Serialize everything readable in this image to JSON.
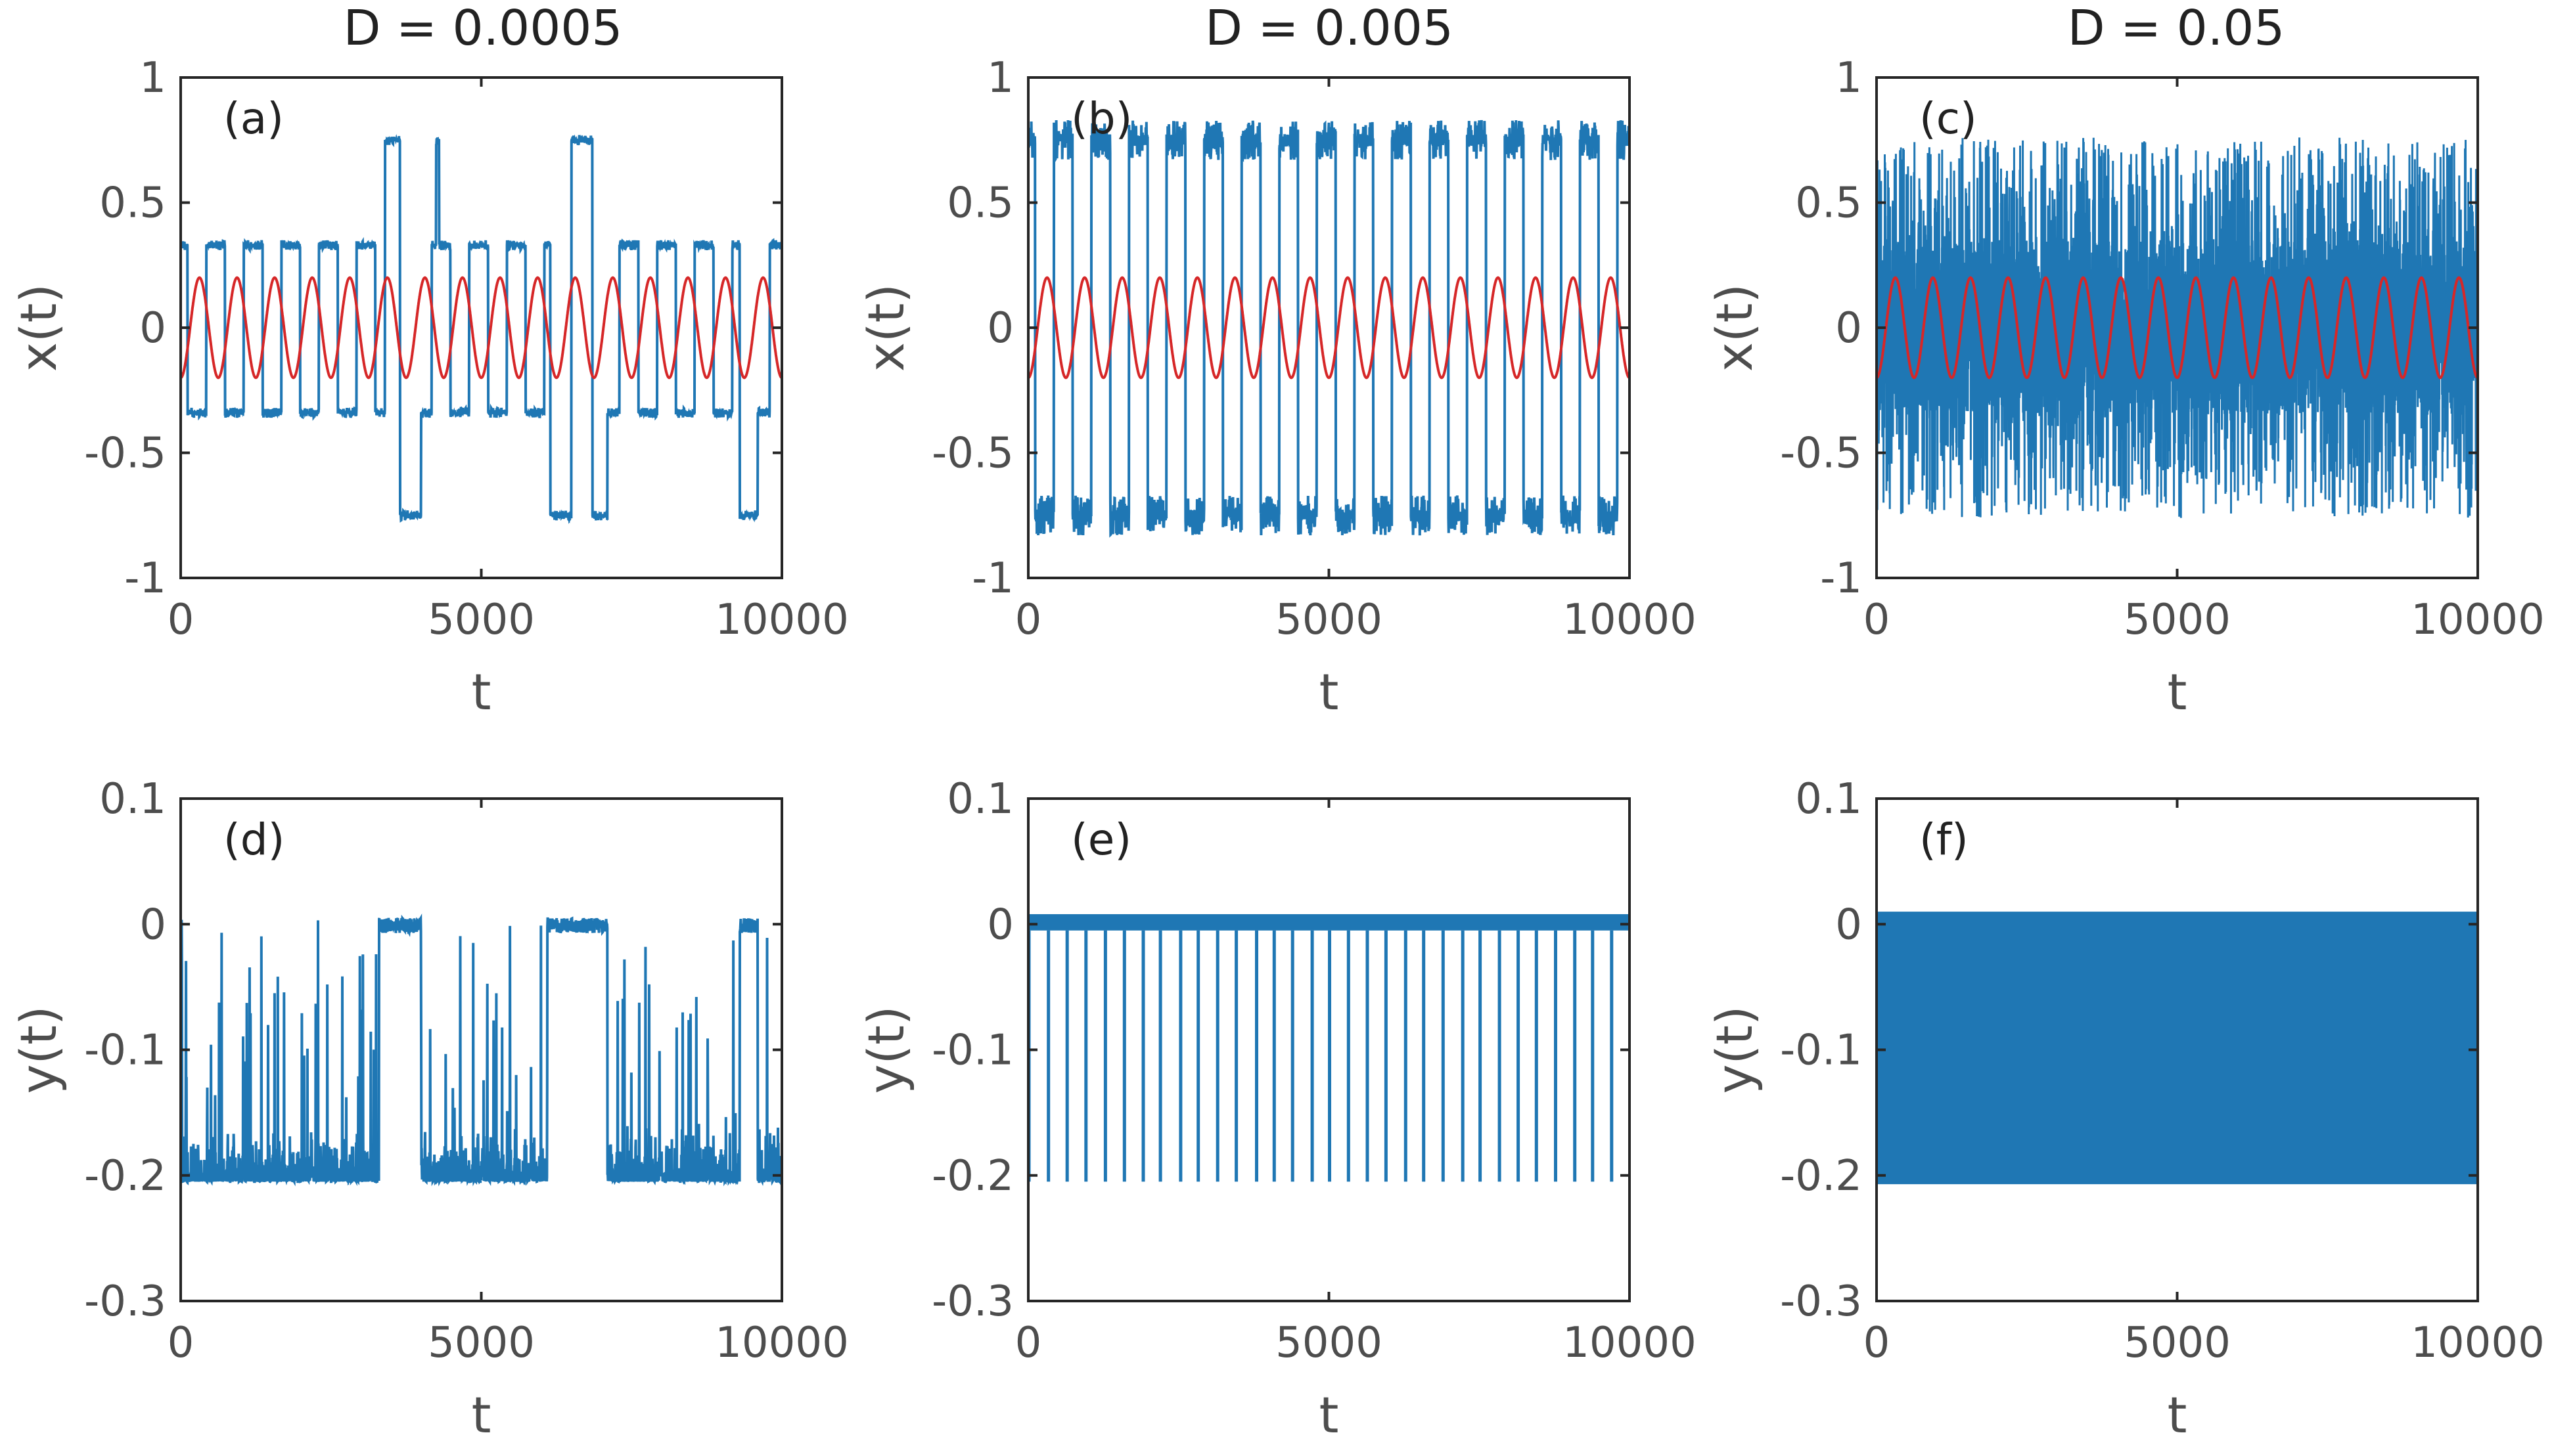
{
  "colors": {
    "series": "#1f77b4",
    "signal": "#d62728",
    "axis": "#262626",
    "text": "#4d4d4d"
  },
  "column_titles": [
    "D = 0.0005",
    "D = 0.005",
    "D = 0.05"
  ],
  "chart_data": [
    {
      "type": "line",
      "panel": "(a)",
      "title": "D = 0.0005",
      "xlabel": "t",
      "ylabel": "x(t)",
      "xlim": [
        0,
        10000
      ],
      "ylim": [
        -1,
        1
      ],
      "xticks": [
        "0",
        "5000",
        "10000"
      ],
      "yticks": [
        "-1",
        "-0.5",
        "0",
        "0.5",
        "1"
      ],
      "series": [
        {
          "name": "x(t)",
          "kind": "telegraph",
          "levels": [
            0.33,
            -0.34
          ],
          "big_levels": [
            0.75,
            -0.75
          ],
          "noise": 0.02,
          "big_intervals": [
            [
              3400,
              3650,
              1
            ],
            [
              3650,
              4000,
              -1
            ],
            [
              4250,
              4300,
              1
            ],
            [
              6150,
              6500,
              -1
            ],
            [
              6500,
              6850,
              1
            ],
            [
              6850,
              7100,
              -1
            ],
            [
              9300,
              9600,
              -1
            ]
          ]
        },
        {
          "name": "signal",
          "kind": "sine",
          "amplitude": 0.2,
          "period": 625,
          "phase_deg": -90
        }
      ]
    },
    {
      "type": "line",
      "panel": "(b)",
      "title": "D = 0.005",
      "xlabel": "t",
      "ylabel": "x(t)",
      "xlim": [
        0,
        10000
      ],
      "ylim": [
        -1,
        1
      ],
      "xticks": [
        "0",
        "5000",
        "10000"
      ],
      "yticks": [
        "-1",
        "-0.5",
        "0",
        "0.5",
        "1"
      ],
      "series": [
        {
          "name": "x(t)",
          "kind": "telegraph",
          "levels": [
            0.75,
            -0.75
          ],
          "noise": 0.08
        },
        {
          "name": "signal",
          "kind": "sine",
          "amplitude": 0.2,
          "period": 625,
          "phase_deg": -90
        }
      ]
    },
    {
      "type": "line",
      "panel": "(c)",
      "title": "D = 0.05",
      "xlabel": "t",
      "ylabel": "x(t)",
      "xlim": [
        0,
        10000
      ],
      "ylim": [
        -1,
        1
      ],
      "xticks": [
        "0",
        "5000",
        "10000"
      ],
      "yticks": [
        "-1",
        "-0.5",
        "0",
        "0.5",
        "1"
      ],
      "series": [
        {
          "name": "x(t)",
          "kind": "dense",
          "range": [
            -0.76,
            0.76
          ],
          "core": [
            -0.35,
            0.35
          ]
        },
        {
          "name": "signal",
          "kind": "sine",
          "amplitude": 0.2,
          "period": 625,
          "phase_deg": -90
        }
      ]
    },
    {
      "type": "line",
      "panel": "(d)",
      "xlabel": "t",
      "ylabel": "y(t)",
      "xlim": [
        0,
        10000
      ],
      "ylim": [
        -0.3,
        0.1
      ],
      "xticks": [
        "0",
        "5000",
        "10000"
      ],
      "yticks": [
        "-0.3",
        "-0.2",
        "-0.1",
        "0",
        "0.1"
      ],
      "series": [
        {
          "name": "y(t)",
          "kind": "bursty",
          "base": -0.205,
          "band": [
            -0.2,
            -0.16
          ],
          "top": 0.005,
          "quiet_intervals": [
            [
              3300,
              4000
            ],
            [
              6100,
              7100
            ],
            [
              9300,
              9600
            ]
          ]
        }
      ]
    },
    {
      "type": "line",
      "panel": "(e)",
      "xlabel": "t",
      "ylabel": "y(t)",
      "xlim": [
        0,
        10000
      ],
      "ylim": [
        -0.3,
        0.1
      ],
      "xticks": [
        "0",
        "5000",
        "10000"
      ],
      "yticks": [
        "-0.3",
        "-0.2",
        "-0.1",
        "0",
        "0.1"
      ],
      "series": [
        {
          "name": "y(t)",
          "kind": "spikes_down",
          "top_band": [
            -0.005,
            0.008
          ],
          "spike_to": -0.205,
          "spike_period": 312.5
        }
      ]
    },
    {
      "type": "line",
      "panel": "(f)",
      "xlabel": "t",
      "ylabel": "y(t)",
      "xlim": [
        0,
        10000
      ],
      "ylim": [
        -0.3,
        0.1
      ],
      "xticks": [
        "0",
        "5000",
        "10000"
      ],
      "yticks": [
        "-0.3",
        "-0.2",
        "-0.1",
        "0",
        "0.1"
      ],
      "series": [
        {
          "name": "y(t)",
          "kind": "band",
          "range": [
            -0.207,
            0.01
          ]
        }
      ]
    }
  ]
}
